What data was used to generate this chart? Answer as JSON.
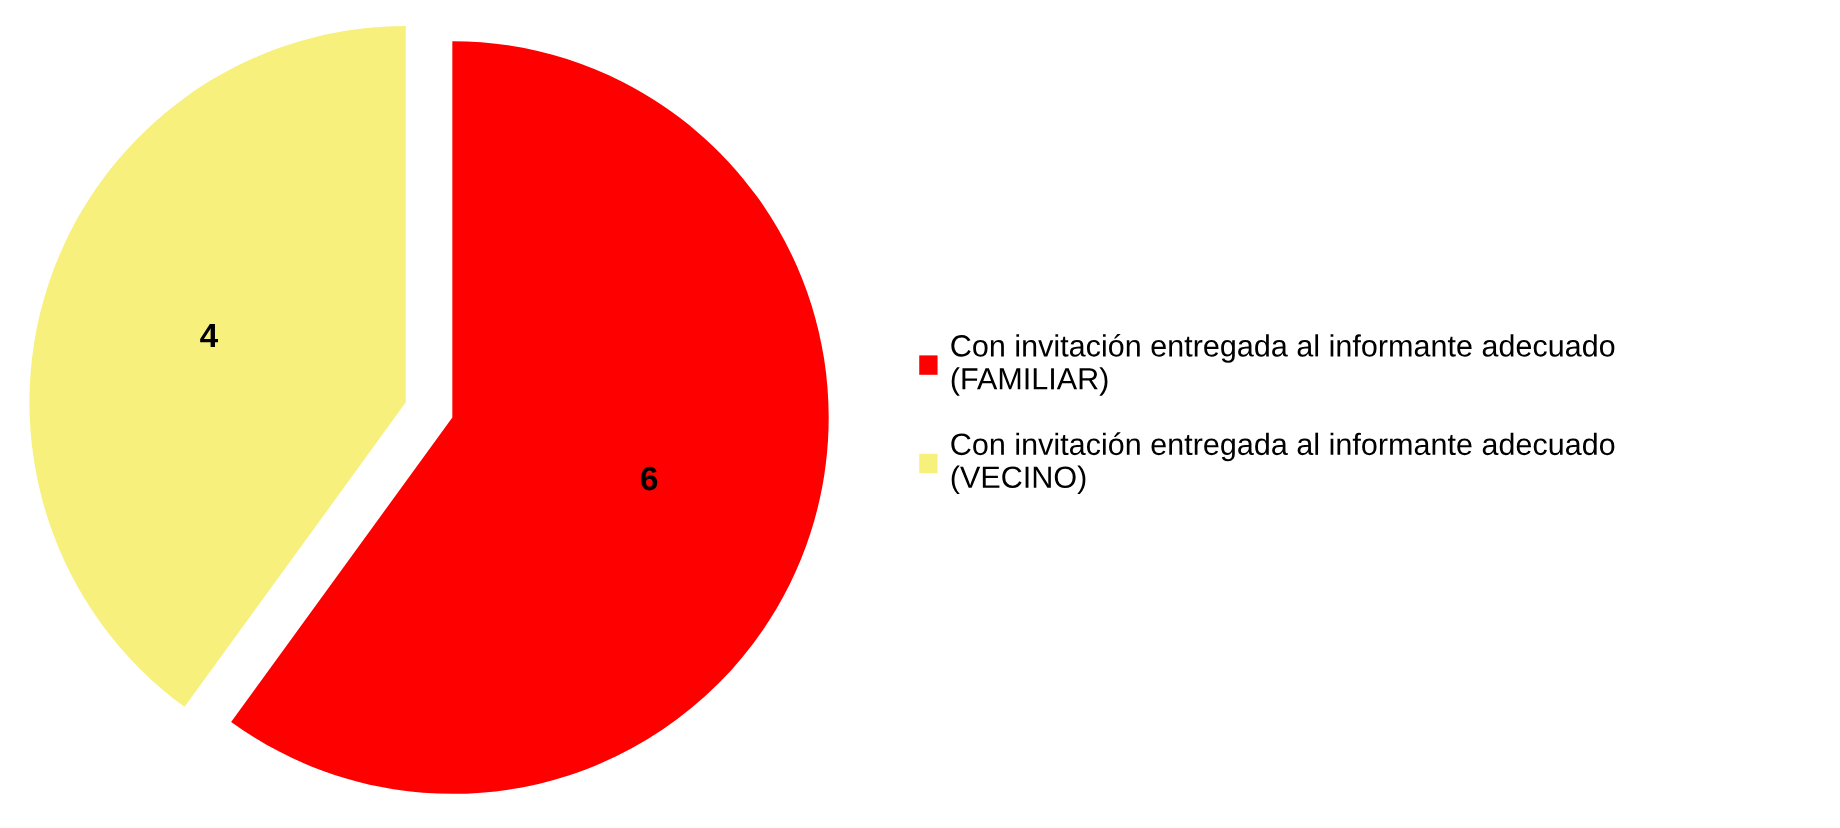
{
  "chart_data": {
    "type": "pie",
    "categories": [
      "Con invitación entregada al informante adecuado\n(FAMILIAR)",
      "Con invitación entregada al informante adecuado\n(VECINO)"
    ],
    "values": [
      6,
      4
    ],
    "colors": [
      "#ff0000",
      "#f7f07c"
    ],
    "data_labels": true,
    "legend": "right"
  }
}
